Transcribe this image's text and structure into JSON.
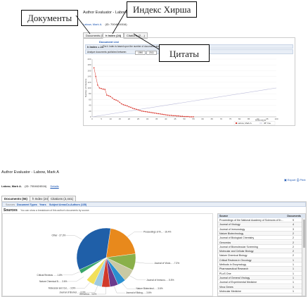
{
  "callouts": {
    "documents": "Документы",
    "h_index": "Индекс Хирша",
    "citations": "Цитаты"
  },
  "top": {
    "title": "Author Evaluator - Labow, Mark A",
    "author_line": "Labow, Mark A.",
    "author_id": "(ID: 7004624516)",
    "tabs": [
      {
        "label": "Documents (55)"
      },
      {
        "label": "h Index (24)"
      },
      {
        "label": "Citations (2,...)"
      }
    ],
    "subtab": "Document List",
    "h_index_text": "h Index = 24",
    "h_index_note": "The h Index is based upon the number of documents and number of citations",
    "range_label": "Analyze documents published between:",
    "range_from": "1990",
    "range_to": "2011",
    "self_cite_label": "Exclude self citations",
    "update_button": "Update Graph",
    "legend": {
      "author": "Labow, Mark A.",
      "ref": "45° line"
    },
    "documents_axis": "Documents",
    "citations_axis": "Number of Citations"
  },
  "chart_data": {
    "type": "scatter",
    "title": "",
    "xlabel": "Documents",
    "ylabel": "Number of Citations",
    "xlim": [
      0,
      100
    ],
    "ylim": [
      0,
      200
    ],
    "x_ticks": [
      0,
      5,
      10,
      15,
      20,
      25,
      30,
      35,
      40,
      45,
      50,
      55,
      60,
      65,
      70,
      75,
      80,
      85,
      90,
      95,
      100
    ],
    "y_ticks": [
      0,
      20,
      40,
      60,
      80,
      100,
      120,
      140,
      160,
      180,
      200
    ],
    "series": [
      {
        "name": "Labow, Mark A.",
        "x": [
          1,
          2,
          3,
          4,
          5,
          6,
          7,
          8,
          9,
          10,
          11,
          12,
          13,
          14,
          15,
          16,
          17,
          18,
          19,
          20,
          21,
          22,
          23,
          24,
          25,
          26,
          27,
          28,
          29,
          30,
          31,
          32,
          33,
          34,
          35,
          36,
          37,
          38,
          39,
          40,
          41,
          42,
          43,
          44,
          45,
          46,
          47,
          48,
          49,
          50,
          51,
          52,
          53,
          54,
          55
        ],
        "y": [
          170,
          140,
          110,
          100,
          98,
          96,
          95,
          75,
          73,
          70,
          65,
          60,
          58,
          55,
          50,
          45,
          42,
          40,
          38,
          35,
          33,
          30,
          28,
          26,
          24,
          22,
          20,
          19,
          18,
          17,
          16,
          15,
          14,
          13,
          12,
          11,
          10,
          9,
          8,
          7,
          6,
          5,
          5,
          4,
          4,
          3,
          3,
          2,
          2,
          1,
          1,
          1,
          0,
          0,
          0
        ]
      },
      {
        "name": "45° line",
        "x": [
          0,
          100
        ],
        "y": [
          0,
          100
        ]
      }
    ]
  },
  "bottom": {
    "title": "Author Evaluator - Labow, Mark A",
    "author_line": "Labow, Mark A.",
    "author_id": "(ID: 7004624516)",
    "details_link": "Details",
    "export": "Export",
    "print": "Print",
    "tabs": [
      {
        "label": "Documents (55)"
      },
      {
        "label": "h Index (24)"
      },
      {
        "label": "Citations (2,441)"
      }
    ],
    "filters": {
      "sources": "Sources",
      "types": "Document Types",
      "years": "Years",
      "areas": "Subject Areas",
      "authors": "Co-Authors (135)"
    },
    "section_title": "Sources",
    "section_note": "You can show a breakdown of this author's documents by source.",
    "table": {
      "col_source": "Source",
      "col_docs": "Documents",
      "rows": [
        {
          "name": "Proceedings of the National Academy of Sciences of the United States of America",
          "count": "9"
        },
        {
          "name": "Journal of Virology",
          "count": "4"
        },
        {
          "name": "Journal of Immunology",
          "count": "3"
        },
        {
          "name": "Nature Biotechnology",
          "count": "2"
        },
        {
          "name": "Journal of Biological Chemistry",
          "count": "2"
        },
        {
          "name": "Genomics",
          "count": "2"
        },
        {
          "name": "Journal of Biomolecular Screening",
          "count": "2"
        },
        {
          "name": "Molecular and Cellular Biology",
          "count": "2"
        },
        {
          "name": "Nature Chemical Biology",
          "count": "2"
        },
        {
          "name": "Critical Reviews in Oncology",
          "count": "1"
        },
        {
          "name": "Methods in Enzymology",
          "count": "1"
        },
        {
          "name": "Pharmaceutical Research",
          "count": "1"
        },
        {
          "name": "PLoS One",
          "count": "1"
        },
        {
          "name": "Journal of General Virology",
          "count": "1"
        },
        {
          "name": "Journal of Experimental Medicine",
          "count": "1"
        },
        {
          "name": "Virus Genes",
          "count": "1"
        },
        {
          "name": "Molecular Medicine",
          "count": "1"
        }
      ]
    },
    "pie": {
      "type": "pie",
      "slices": [
        {
          "label": "Other - 27.3%",
          "value": 27.3,
          "color": "#1f5fa8"
        },
        {
          "label": "Proceedings of th... - 16.4%",
          "value": 16.4,
          "color": "#e8891c"
        },
        {
          "label": "Journal of Virolo... - 7.3%",
          "value": 7.3,
          "color": "#8ab04a"
        },
        {
          "label": "Journal of Immuno... - 5.5%",
          "value": 5.5,
          "color": "#c9c9a3"
        },
        {
          "label": "Nature Biotechnol... - 3.6%",
          "value": 3.6,
          "color": "#2a8fd0"
        },
        {
          "label": "Journal of Biolog... - 3.6%",
          "value": 3.6,
          "color": "#6b3a8c"
        },
        {
          "label": "Genomics - 3.6%",
          "value": 3.6,
          "color": "#d13a2a"
        },
        {
          "label": "Journal of Biomol... - 3.6%",
          "value": 3.6,
          "color": "#9ecae1"
        },
        {
          "label": "Molecular and Cel... - 3.6%",
          "value": 3.6,
          "color": "#f2e05a"
        },
        {
          "label": "Nature Chemical B... - 3.6%",
          "value": 3.6,
          "color": "#ffffff"
        },
        {
          "label": "Critical Reviews ... - 1.8%",
          "value": 1.8,
          "color": "#3aa66a"
        }
      ]
    }
  }
}
